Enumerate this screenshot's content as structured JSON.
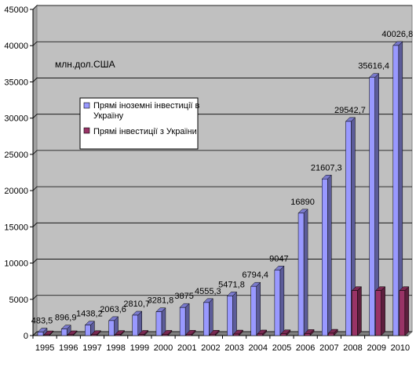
{
  "chart_data": {
    "type": "bar",
    "unit_label": "млн.дол.США",
    "categories": [
      "1995",
      "1996",
      "1997",
      "1998",
      "1999",
      "2000",
      "2001",
      "2002",
      "2003",
      "2004",
      "2005",
      "2006",
      "2007",
      "2008",
      "2009",
      "2010"
    ],
    "series": [
      {
        "name": "Прямі іноземні інвестиції в Україну",
        "color": "#9999ff",
        "values": [
          483.5,
          896.9,
          1438.2,
          2063.6,
          2810.7,
          3281.8,
          3875,
          4555.3,
          5471.8,
          6794.4,
          9047,
          16890,
          21607.3,
          29542.7,
          35616.4,
          40026.8
        ],
        "labels": [
          "483,5",
          "896,9",
          "1438,2",
          "2063,6",
          "2810,7",
          "3281,8",
          "3875",
          "4555,3",
          "5471,8",
          "6794,4",
          "9047",
          "16890",
          "21607,3",
          "29542,7",
          "35616,4",
          "40026,8"
        ]
      },
      {
        "name": "Прямі інвестиції з України",
        "color": "#993366",
        "values": [
          100,
          110,
          130,
          150,
          160,
          170,
          180,
          190,
          210,
          220,
          240,
          280,
          320,
          6200,
          6200,
          6200
        ]
      }
    ],
    "ylim": [
      0,
      45000
    ],
    "yticks": [
      0,
      5000,
      10000,
      15000,
      20000,
      25000,
      30000,
      35000,
      40000,
      45000
    ],
    "grid": true,
    "legend_position": "upper-left",
    "plot_background": "#c0c0c0"
  }
}
